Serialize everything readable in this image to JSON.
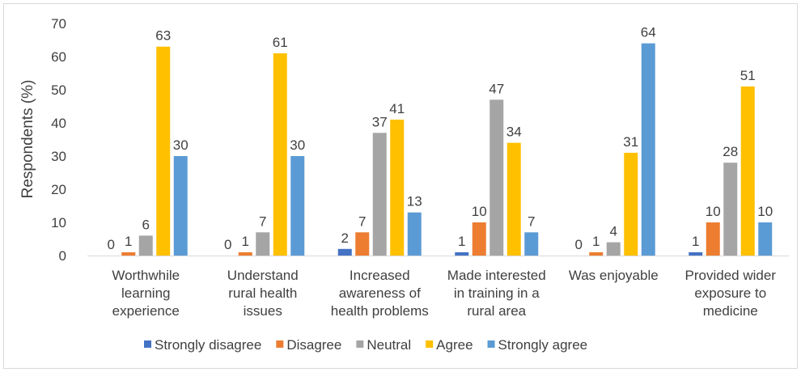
{
  "chart_data": {
    "type": "bar",
    "title": "",
    "xlabel": "",
    "ylabel": "Respondents (%)",
    "ylim": [
      0,
      70
    ],
    "yticks": [
      0,
      10,
      20,
      30,
      40,
      50,
      60,
      70
    ],
    "grid": false,
    "legend_position": "bottom",
    "categories": [
      [
        "Worthwhile",
        "learning",
        "experience"
      ],
      [
        "Understand",
        "rural health",
        "issues"
      ],
      [
        "Increased",
        "awareness of",
        "health problems"
      ],
      [
        "Made interested",
        "in training in a",
        "rural area"
      ],
      [
        "Was enjoyable"
      ],
      [
        "Provided wider",
        "exposure to",
        "medicine"
      ]
    ],
    "series": [
      {
        "name": "Strongly disagree",
        "color": "#4472C4",
        "values": [
          0,
          0,
          2,
          1,
          0,
          1
        ]
      },
      {
        "name": "Disagree",
        "color": "#ED7D31",
        "values": [
          1,
          1,
          7,
          10,
          1,
          10
        ]
      },
      {
        "name": "Neutral",
        "color": "#A5A5A5",
        "values": [
          6,
          7,
          37,
          47,
          4,
          28
        ]
      },
      {
        "name": "Agree",
        "color": "#FFC000",
        "values": [
          63,
          61,
          41,
          34,
          31,
          51
        ]
      },
      {
        "name": "Strongly agree",
        "color": "#5B9BD5",
        "values": [
          30,
          30,
          13,
          7,
          64,
          10
        ]
      }
    ]
  }
}
